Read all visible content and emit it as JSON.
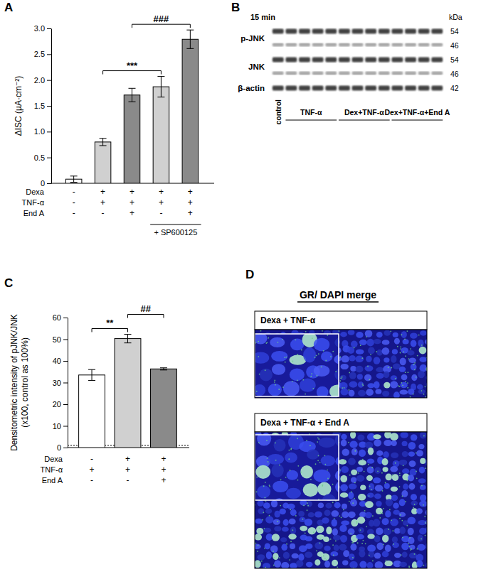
{
  "chart_data": [
    {
      "type": "bar",
      "title": "A",
      "y_label": "ΔISC (µA·cm⁻²)",
      "categories": [
        null,
        null,
        null,
        null,
        null
      ],
      "values": [
        0.08,
        0.8,
        1.71,
        1.87,
        2.79
      ],
      "errors": [
        0.06,
        0.07,
        0.13,
        0.2,
        0.18
      ],
      "colors": [
        "#ffffff",
        "#d0d0d0",
        "#8a8a8a",
        "#d0d0d0",
        "#8a8a8a"
      ],
      "ylim": [
        0,
        3
      ],
      "yticks": [
        0,
        0.5,
        {
          "value": 1,
          "label": "1.0"
        },
        1.5,
        {
          "value": 2,
          "label": "2.0"
        },
        2.5,
        {
          "value": 3,
          "label": "3.0"
        }
      ],
      "conditions": [
        {
          "name": "Dexa",
          "values": [
            "-",
            "+",
            "+",
            "+",
            "+"
          ]
        },
        {
          "name": "TNF-α",
          "values": [
            "-",
            "+",
            "+",
            "+",
            "+"
          ]
        },
        {
          "name": "End A",
          "values": [
            "-",
            "-",
            "+",
            "-",
            "+"
          ]
        }
      ],
      "group_label": {
        "text": "+ SP600125",
        "from": 3,
        "to": 4
      },
      "annotations": [
        {
          "text": "***",
          "from": 1,
          "to": 3
        },
        {
          "text": "###",
          "from": 2,
          "to": 4
        }
      ]
    },
    {
      "type": "bar",
      "title": "C",
      "y_label": [
        "Densitometric intensity of pJNK/JNK",
        "(x100, control as 100%)"
      ],
      "categories": [
        null,
        null,
        null
      ],
      "values": [
        33.5,
        50.3,
        36.3
      ],
      "errors": [
        2.5,
        2.0,
        0.5
      ],
      "colors": [
        "#ffffff",
        "#d0d0d0",
        "#8a8a8a"
      ],
      "ylim": [
        0,
        60
      ],
      "yticks": [
        0,
        10,
        20,
        30,
        40,
        50,
        60
      ],
      "reference_line": 1,
      "conditions": [
        {
          "name": "Dexa",
          "values": [
            "-",
            "+",
            "+"
          ]
        },
        {
          "name": "TNF-α",
          "values": [
            "+",
            "+",
            "+"
          ]
        },
        {
          "name": "End A",
          "values": [
            "-",
            "-",
            "+"
          ]
        }
      ],
      "annotations": [
        {
          "text": "**",
          "from": 0,
          "to": 1
        },
        {
          "text": "##",
          "from": 1,
          "to": 2
        }
      ]
    }
  ],
  "blot": {
    "title": "B",
    "time": "15 min",
    "unit": "kDa",
    "rows": [
      {
        "name": "p-JNK",
        "markers": [
          54,
          46
        ]
      },
      {
        "name": "JNK",
        "markers": [
          54,
          46
        ]
      },
      {
        "name": "β-actin",
        "markers": [
          42
        ]
      }
    ],
    "lanes": [
      {
        "label": "control",
        "count": 1
      },
      {
        "label": "TNF-α",
        "count": 4
      },
      {
        "label": "Dex+TNF-α",
        "count": 4
      },
      {
        "label": "Dex+TNF-α+End A",
        "count": 4
      }
    ]
  },
  "microscopy": {
    "title": "D",
    "heading": "GR/ DAPI merge",
    "panels": [
      "Dexa + TNF-α",
      "Dexa + TNF-α + End A"
    ]
  }
}
